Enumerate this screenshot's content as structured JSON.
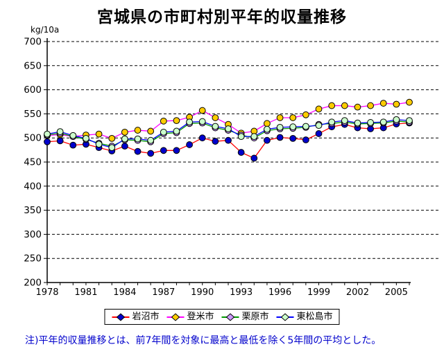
{
  "title": "宮城県の市町村別平年的収量推移",
  "note": "注)平年的収量推移とは、前7年間を対象に最高と最低を除く5年間の平均とした。",
  "chart_data": {
    "type": "line",
    "title": "宮城県の市町村別平年的収量推移",
    "ylabel": "kg/10a",
    "xlabel": "",
    "ylim": [
      200,
      700
    ],
    "ytick_step": 50,
    "grid": "horizontal-dashed",
    "legend_position": "bottom",
    "x_range": [
      1978,
      2006
    ],
    "xtick_label_years": [
      1978,
      1981,
      1984,
      1987,
      1990,
      1993,
      1996,
      1999,
      2002,
      2005
    ],
    "x": [
      1978,
      1979,
      1980,
      1981,
      1982,
      1983,
      1984,
      1985,
      1986,
      1987,
      1988,
      1989,
      1990,
      1991,
      1992,
      1993,
      1994,
      1995,
      1996,
      1997,
      1998,
      1999,
      2000,
      2001,
      2002,
      2003,
      2004,
      2005,
      2006
    ],
    "series": [
      {
        "name": "岩沼市",
        "line_color": "#ff0000",
        "marker_color": "#0000cc",
        "values": [
          492,
          494,
          485,
          487,
          480,
          473,
          483,
          472,
          468,
          474,
          474,
          486,
          500,
          493,
          495,
          470,
          458,
          495,
          501,
          499,
          496,
          509,
          523,
          528,
          521,
          519,
          521,
          529,
          531
        ]
      },
      {
        "name": "登米市",
        "line_color": "#ff00ff",
        "marker_color": "#ffcc00",
        "values": [
          505,
          507,
          503,
          506,
          508,
          499,
          512,
          516,
          514,
          535,
          536,
          543,
          557,
          542,
          528,
          510,
          514,
          530,
          542,
          542,
          548,
          560,
          567,
          567,
          564,
          567,
          572,
          570,
          574
        ]
      },
      {
        "name": "栗原市",
        "line_color": "#009900",
        "marker_color": "#cc99ff",
        "values": [
          506,
          510,
          503,
          497,
          489,
          483,
          496,
          495,
          492,
          509,
          511,
          530,
          531,
          521,
          516,
          506,
          500,
          515,
          519,
          520,
          522,
          528,
          530,
          533,
          529,
          530,
          531,
          535,
          533
        ]
      },
      {
        "name": "東松島市",
        "line_color": "#0000ff",
        "marker_color": "#ccffcc",
        "values": [
          508,
          513,
          505,
          499,
          487,
          480,
          498,
          498,
          495,
          512,
          514,
          533,
          534,
          524,
          519,
          503,
          503,
          518,
          522,
          523,
          524,
          526,
          533,
          536,
          531,
          532,
          533,
          538,
          536
        ]
      }
    ]
  }
}
